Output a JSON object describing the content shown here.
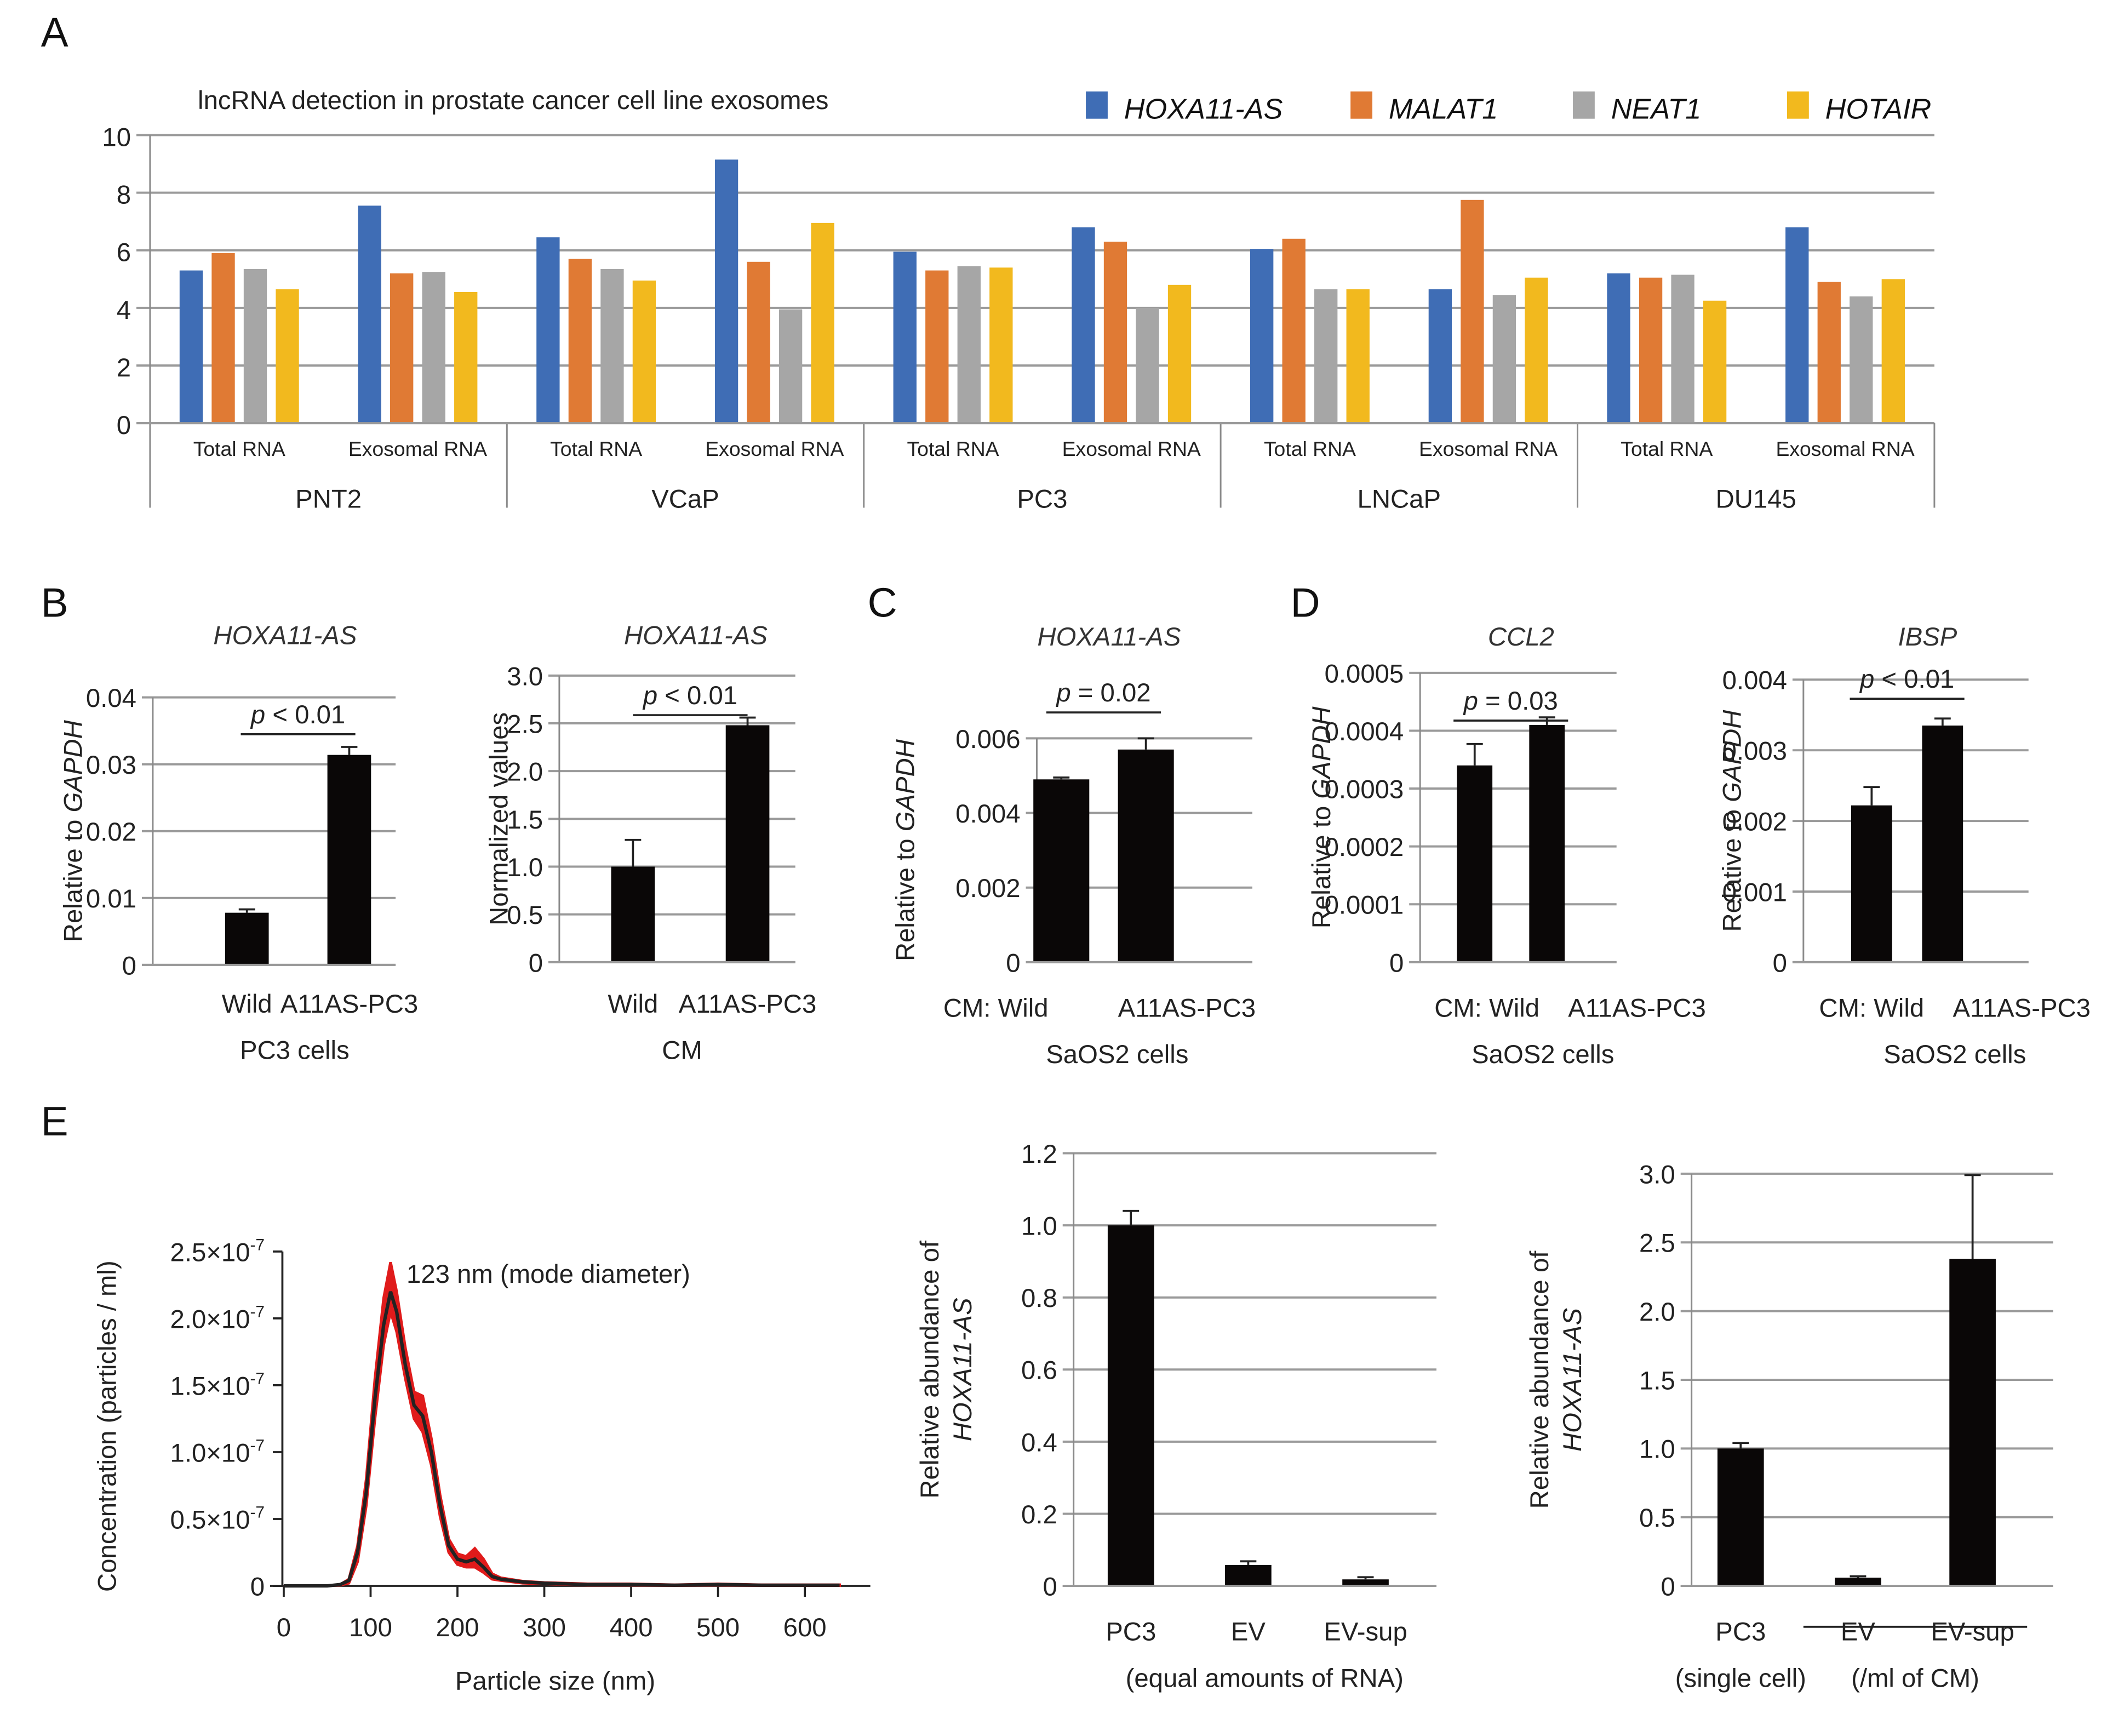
{
  "panels": {
    "A": "A",
    "B": "B",
    "C": "C",
    "D": "D",
    "E": "E"
  },
  "chart_data": [
    {
      "id": "A",
      "type": "bar",
      "title": "lncRNA detection in prostate cancer cell line exosomes",
      "ylim": [
        0,
        10
      ],
      "yticks": [
        0,
        2,
        4,
        6,
        8,
        10
      ],
      "grid": true,
      "legend_position": "top-right",
      "groups": [
        "PNT2",
        "VCaP",
        "PC3",
        "LNCaP",
        "DU145"
      ],
      "subcategories": [
        "Total RNA",
        "Exosomal RNA"
      ],
      "series": [
        {
          "name": "HOXA11-AS",
          "color": "#3f6db5",
          "values": [
            5.3,
            7.55,
            6.45,
            9.15,
            5.95,
            6.8,
            6.05,
            4.65,
            5.2,
            6.8
          ]
        },
        {
          "name": "MALAT1",
          "color": "#e07a34",
          "values": [
            5.9,
            5.2,
            5.7,
            5.6,
            5.3,
            6.3,
            6.4,
            7.75,
            5.05,
            4.9
          ]
        },
        {
          "name": "NEAT1",
          "color": "#a6a6a6",
          "values": [
            5.35,
            5.25,
            5.35,
            3.95,
            5.45,
            4.0,
            4.65,
            4.45,
            5.15,
            4.4
          ]
        },
        {
          "name": "HOTAIR",
          "color": "#f2b91e",
          "values": [
            4.65,
            4.55,
            4.95,
            6.95,
            5.4,
            4.8,
            4.65,
            5.05,
            4.25,
            5.0
          ]
        }
      ]
    },
    {
      "id": "B1",
      "type": "bar",
      "title": "HOXA11-AS",
      "ylabel_prefix": "Relative to ",
      "ylabel_italic": "GAPDH",
      "ylim": [
        0,
        0.04
      ],
      "yticks": [
        "0",
        "0.01",
        "0.02",
        "0.03",
        "0.04"
      ],
      "categories": [
        "Wild",
        "A11AS-PC3"
      ],
      "xlabel": "PC3 cells",
      "values": [
        0.0078,
        0.0314
      ],
      "errors": [
        0.0005,
        0.0012
      ],
      "pvalue": {
        "p": "p",
        "text": " < 0.01"
      }
    },
    {
      "id": "B2",
      "type": "bar",
      "title": "HOXA11-AS",
      "ylabel": "Normalized values",
      "ylim": [
        0,
        3.0
      ],
      "yticks": [
        "0",
        "0.5",
        "1.0",
        "1.5",
        "2.0",
        "2.5",
        "3.0"
      ],
      "categories": [
        "Wild",
        "A11AS-PC3"
      ],
      "xlabel": "CM",
      "values": [
        1.0,
        2.48
      ],
      "errors": [
        0.28,
        0.08
      ],
      "pvalue": {
        "p": "p",
        "text": " < 0.01"
      }
    },
    {
      "id": "C",
      "type": "bar",
      "title": "HOXA11-AS",
      "ylabel_prefix": "Relative to ",
      "ylabel_italic": "GAPDH",
      "ylim": [
        0,
        0.006
      ],
      "yticks": [
        "0",
        "0.002",
        "0.004",
        "0.006"
      ],
      "categories": [
        "CM: Wild",
        "A11AS-PC3"
      ],
      "xlabel": "SaOS2 cells",
      "values": [
        0.0049,
        0.0057
      ],
      "errors": [
        5e-05,
        0.0003
      ],
      "pvalue": {
        "p": "p",
        "text": " = 0.02"
      }
    },
    {
      "id": "D1",
      "type": "bar",
      "title": "CCL2",
      "ylabel_prefix": "Relative to ",
      "ylabel_italic": "GAPDH",
      "ylim": [
        0,
        0.0005
      ],
      "yticks": [
        "0",
        "0.0001",
        "0.0002",
        "0.0003",
        "0.0004",
        "0.0005"
      ],
      "categories": [
        "CM: Wild",
        "A11AS-PC3"
      ],
      "xlabel": "SaOS2 cells",
      "values": [
        0.00034,
        0.00041
      ],
      "errors": [
        3.7e-05,
        1.3e-05
      ],
      "pvalue": {
        "p": "p",
        "text": " = 0.03"
      }
    },
    {
      "id": "D2",
      "type": "bar",
      "title": "IBSP",
      "ylabel_prefix": "Relative to ",
      "ylabel_italic": "GAPDH",
      "ylim": [
        0,
        0.004
      ],
      "yticks": [
        "0",
        "0.001",
        "0.002",
        "0.003",
        "0.004"
      ],
      "categories": [
        "CM: Wild",
        "A11AS-PC3"
      ],
      "xlabel": "SaOS2 cells",
      "values": [
        0.00222,
        0.00335
      ],
      "errors": [
        0.00026,
        0.0001
      ],
      "pvalue": {
        "p": "p",
        "text": " < 0.01"
      }
    },
    {
      "id": "E1",
      "type": "line",
      "ylabel": "Concentration (particles / ml)",
      "xlabel": "Particle size (nm)",
      "xlim": [
        0,
        650
      ],
      "xticks": [
        "0",
        "100",
        "200",
        "300",
        "400",
        "500",
        "600"
      ],
      "ylim": [
        0,
        2.5
      ],
      "yticks": [
        "0",
        "0.5×10",
        "1.0×10",
        "1.5×10",
        "2.0×10",
        "2.5×10"
      ],
      "ytick_exponent": "-7",
      "annotation": "123 nm (mode diameter)",
      "x": [
        0,
        50,
        65,
        75,
        85,
        95,
        105,
        115,
        123,
        130,
        140,
        150,
        160,
        170,
        180,
        190,
        200,
        210,
        220,
        230,
        240,
        250,
        275,
        300,
        350,
        400,
        450,
        500,
        550,
        600,
        640
      ],
      "y": [
        0,
        0,
        0.01,
        0.04,
        0.25,
        0.7,
        1.4,
        1.95,
        2.2,
        2.05,
        1.65,
        1.35,
        1.27,
        1.0,
        0.6,
        0.3,
        0.2,
        0.18,
        0.2,
        0.14,
        0.07,
        0.05,
        0.03,
        0.02,
        0.01,
        0.01,
        0.005,
        0.01,
        0.005,
        0.005,
        0.005
      ],
      "upper": [
        0,
        0,
        0.01,
        0.05,
        0.3,
        0.8,
        1.55,
        2.15,
        2.42,
        2.2,
        1.78,
        1.45,
        1.42,
        1.1,
        0.68,
        0.35,
        0.24,
        0.22,
        0.28,
        0.2,
        0.09,
        0.06,
        0.035,
        0.025,
        0.015,
        0.015,
        0.008,
        0.015,
        0.008,
        0.008,
        0.008
      ],
      "lower": [
        0,
        0,
        0.005,
        0.02,
        0.18,
        0.6,
        1.25,
        1.8,
        2.05,
        1.9,
        1.55,
        1.25,
        1.15,
        0.9,
        0.52,
        0.25,
        0.16,
        0.14,
        0.14,
        0.1,
        0.05,
        0.04,
        0.02,
        0.015,
        0.005,
        0.005,
        0.002,
        0.005,
        0.002,
        0.002,
        0.002
      ],
      "colors": {
        "mean": "#222222",
        "band": "#e01b1b"
      }
    },
    {
      "id": "E2",
      "type": "bar",
      "ylabel": "Relative abundance of",
      "ylabel_italic": "HOXA11-AS",
      "ylim": [
        0,
        1.2
      ],
      "yticks": [
        "0",
        "0.2",
        "0.4",
        "0.6",
        "0.8",
        "1.0",
        "1.2"
      ],
      "categories": [
        "PC3",
        "EV",
        "EV-sup"
      ],
      "xlabel": "(equal amounts of RNA)",
      "values": [
        1.0,
        0.058,
        0.018
      ],
      "errors": [
        0.04,
        0.01,
        0.006
      ]
    },
    {
      "id": "E3",
      "type": "bar",
      "ylabel": "Relative abundance of",
      "ylabel_italic": "HOXA11-AS",
      "ylim": [
        0,
        3.0
      ],
      "yticks": [
        "0",
        "0.5",
        "1.0",
        "1.5",
        "2.0",
        "2.5",
        "3.0"
      ],
      "categories": [
        "PC3",
        "EV",
        "EV-sup"
      ],
      "sublabels": [
        "(single cell)",
        "(/ml of CM)"
      ],
      "values": [
        1.0,
        0.06,
        2.38
      ],
      "errors": [
        0.04,
        0.01,
        0.61
      ]
    }
  ]
}
